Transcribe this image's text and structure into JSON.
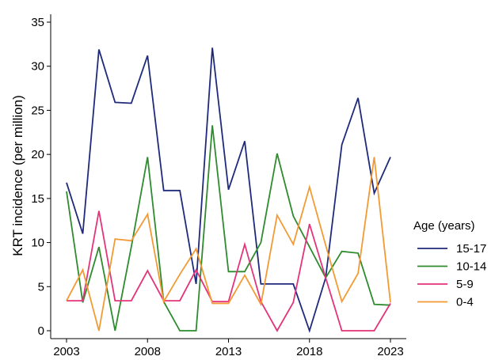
{
  "chart_data": {
    "type": "line",
    "title": "",
    "xlabel": "",
    "ylabel": "KRT incidence (per million)",
    "xlim": [
      2003,
      2023
    ],
    "ylim": [
      0,
      35
    ],
    "xticks": [
      2003,
      2008,
      2013,
      2018,
      2023
    ],
    "yticks": [
      0,
      5,
      10,
      15,
      20,
      25,
      30,
      35
    ],
    "grid": false,
    "legend": {
      "title": "Age (years)",
      "placement": "right"
    },
    "x": [
      2003,
      2004,
      2005,
      2006,
      2007,
      2008,
      2009,
      2010,
      2011,
      2012,
      2013,
      2014,
      2015,
      2016,
      2017,
      2018,
      2019,
      2020,
      2021,
      2022,
      2023
    ],
    "series": [
      {
        "name": "15-17",
        "color": "#1f2a7a",
        "values": [
          16.8,
          11.0,
          31.9,
          25.9,
          25.8,
          31.2,
          15.9,
          15.9,
          5.3,
          32.1,
          16.0,
          21.5,
          5.3,
          5.3,
          5.3,
          0,
          6.0,
          21.1,
          26.4,
          15.6,
          19.7
        ]
      },
      {
        "name": "10-14",
        "color": "#2e8b2e",
        "values": [
          15.8,
          3.2,
          9.5,
          0,
          9.5,
          19.7,
          3.3,
          0,
          0,
          23.3,
          6.7,
          6.7,
          10.0,
          20.1,
          13.0,
          9.5,
          6.0,
          9.0,
          8.8,
          3.0,
          2.9
        ]
      },
      {
        "name": "5-9",
        "color": "#e3337a",
        "values": [
          3.4,
          3.4,
          13.6,
          3.4,
          3.4,
          6.8,
          3.4,
          3.4,
          6.9,
          3.3,
          3.3,
          9.8,
          3.3,
          0,
          3.2,
          12.1,
          6.0,
          0,
          0,
          0,
          3.1
        ]
      },
      {
        "name": "0-4",
        "color": "#f39a34",
        "values": [
          3.4,
          6.9,
          0,
          10.4,
          10.2,
          13.2,
          3.3,
          6.4,
          9.3,
          3.1,
          3.1,
          6.3,
          3.0,
          13.1,
          9.8,
          16.3,
          9.7,
          3.3,
          6.5,
          19.7,
          3.2
        ]
      }
    ]
  }
}
